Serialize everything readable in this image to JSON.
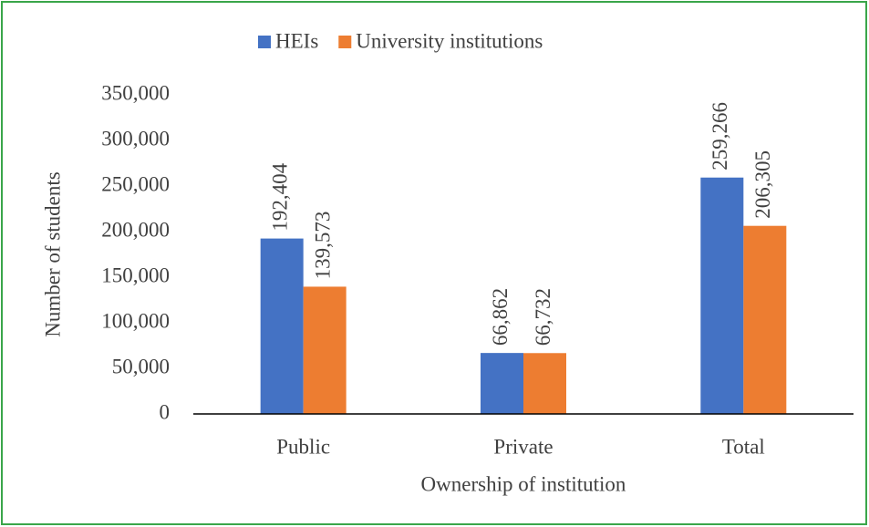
{
  "chart_data": {
    "type": "bar",
    "categories": [
      "Public",
      "Private",
      "Total"
    ],
    "series": [
      {
        "name": "HEIs",
        "color": "#4472c4",
        "values": [
          192404,
          66862,
          259266
        ],
        "value_labels": [
          "192,404",
          "66,862",
          "259,266"
        ]
      },
      {
        "name": "University institutions",
        "color": "#ed7d31",
        "values": [
          139573,
          66732,
          206305
        ],
        "value_labels": [
          "139,573",
          "66,732",
          "206,305"
        ]
      }
    ],
    "xlabel": "Ownership of institution",
    "ylabel": "Number of students",
    "ylim": [
      0,
      350000
    ],
    "yticks": [
      0,
      {
        "value": 50000,
        "label": "50,000"
      },
      {
        "value": 100000,
        "label": "100,000"
      },
      {
        "value": 150000,
        "label": "150,000"
      },
      {
        "value": 200000,
        "label": "200,000"
      },
      {
        "value": 250000,
        "label": "250,000"
      },
      {
        "value": 300000,
        "label": "300,000"
      },
      {
        "value": 350000,
        "label": "350,000"
      }
    ],
    "grid": false,
    "legend": "top"
  }
}
